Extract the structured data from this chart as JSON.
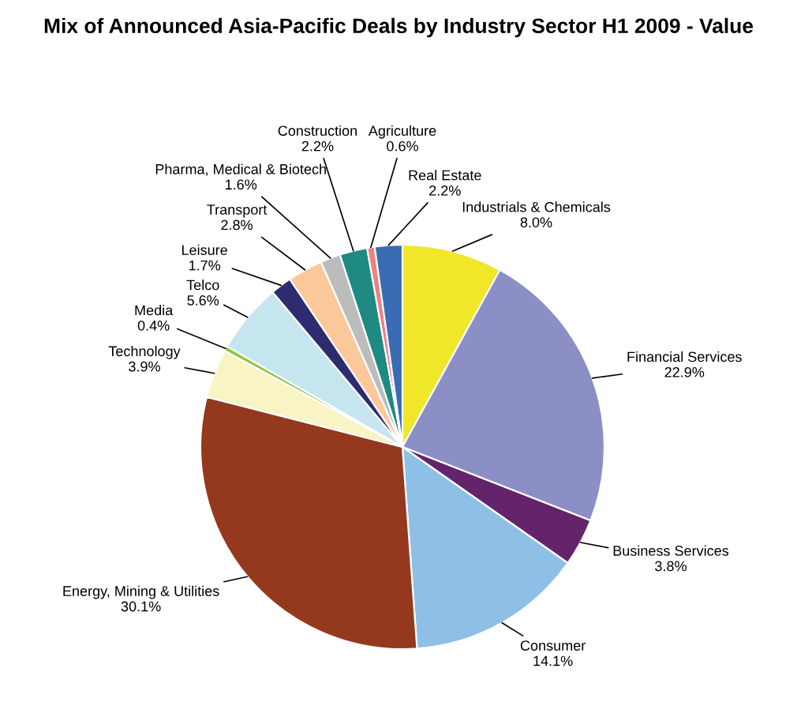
{
  "chart_data": {
    "type": "pie",
    "title": "Mix of Announced Asia-Pacific Deals by Industry Sector H1 2009 - Value",
    "categories": [
      "Industrials & Chemicals",
      "Financial Services",
      "Business Services",
      "Consumer",
      "Energy, Mining & Utilities",
      "Technology",
      "Media",
      "Telco",
      "Leisure",
      "Transport",
      "Pharma, Medical & Biotech",
      "Construction",
      "Agriculture",
      "Real Estate"
    ],
    "values": [
      8.0,
      22.9,
      3.8,
      14.1,
      30.1,
      3.9,
      0.4,
      5.6,
      1.7,
      2.8,
      1.6,
      2.2,
      0.6,
      2.2
    ],
    "colors": [
      "#f0e62a",
      "#8b8fc6",
      "#63246b",
      "#8ebfe6",
      "#94391e",
      "#f8f4c4",
      "#8dc63f",
      "#c5e6ee",
      "#2e2b6e",
      "#fbc89a",
      "#bcbcbc",
      "#1e8a82",
      "#f08080",
      "#3a6cb4"
    ],
    "value_labels": [
      "8.0%",
      "22.9%",
      "3.8%",
      "14.1%",
      "30.1%",
      "3.9%",
      "0.4%",
      "5.6%",
      "1.7%",
      "2.8%",
      "1.6%",
      "2.2%",
      "0.6%",
      "2.2%"
    ]
  }
}
